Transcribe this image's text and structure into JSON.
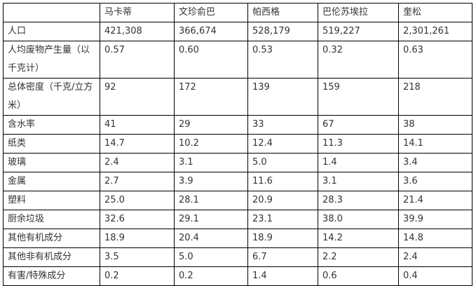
{
  "table": {
    "headers": [
      "",
      "马卡蒂",
      "文珍俞巴",
      "帕西格",
      "巴伦苏埃拉",
      "奎松"
    ],
    "rows": [
      [
        "人口",
        "421,308",
        "366,674",
        "528,179",
        "519,227",
        "2,301,261"
      ],
      [
        "人均废物产生量（以千克计）",
        "0.57",
        "0.60",
        "0.53",
        "0.32",
        "0.63"
      ],
      [
        "总体密度（千克/立方米）",
        "92",
        "172",
        "139",
        "159",
        "218"
      ],
      [
        "含水率",
        "41",
        "29",
        "33",
        "67",
        "38"
      ],
      [
        "纸类",
        "14.7",
        "10.2",
        "12.4",
        "11.3",
        "14.1"
      ],
      [
        "玻璃",
        "2.4",
        "3.1",
        "5.0",
        "1.4",
        "3.4"
      ],
      [
        "金属",
        "2.7",
        "3.9",
        "11.6",
        "3.1",
        "3.6"
      ],
      [
        "塑料",
        "25.0",
        "28.1",
        "20.9",
        "28.3",
        "21.4"
      ],
      [
        "厨余垃圾",
        "32.6",
        "29.1",
        "23.1",
        "38.0",
        "39.9"
      ],
      [
        "其他有机成分",
        "18.9",
        "20.4",
        "18.9",
        "14.2",
        "14.8"
      ],
      [
        "其他非有机成分",
        "3.5",
        "5.0",
        "6.7",
        "2.2",
        "2.4"
      ],
      [
        "有害/特殊成分",
        "0.2",
        "0.2",
        "1.4",
        "0.6",
        "0.4"
      ]
    ]
  }
}
